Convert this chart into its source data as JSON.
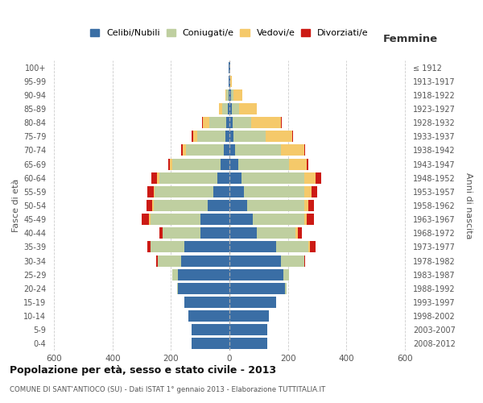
{
  "age_groups": [
    "0-4",
    "5-9",
    "10-14",
    "15-19",
    "20-24",
    "25-29",
    "30-34",
    "35-39",
    "40-44",
    "45-49",
    "50-54",
    "55-59",
    "60-64",
    "65-69",
    "70-74",
    "75-79",
    "80-84",
    "85-89",
    "90-94",
    "95-99",
    "100+"
  ],
  "birth_years": [
    "2008-2012",
    "2003-2007",
    "1998-2002",
    "1993-1997",
    "1988-1992",
    "1983-1987",
    "1978-1982",
    "1973-1977",
    "1968-1972",
    "1963-1967",
    "1958-1962",
    "1953-1957",
    "1948-1952",
    "1943-1947",
    "1938-1942",
    "1933-1937",
    "1928-1932",
    "1923-1927",
    "1918-1922",
    "1913-1917",
    "≤ 1912"
  ],
  "male": {
    "celibi": [
      130,
      130,
      140,
      155,
      175,
      175,
      165,
      155,
      100,
      100,
      75,
      55,
      40,
      30,
      20,
      15,
      10,
      5,
      3,
      2,
      2
    ],
    "coniugati": [
      0,
      0,
      0,
      0,
      5,
      20,
      80,
      115,
      130,
      170,
      185,
      200,
      200,
      165,
      130,
      95,
      60,
      20,
      8,
      2,
      2
    ],
    "vedovi": [
      0,
      0,
      0,
      0,
      0,
      0,
      0,
      0,
      0,
      5,
      5,
      5,
      8,
      10,
      10,
      15,
      20,
      10,
      3,
      0,
      0
    ],
    "divorziati": [
      0,
      0,
      0,
      0,
      0,
      0,
      5,
      10,
      10,
      25,
      20,
      20,
      20,
      5,
      5,
      5,
      3,
      0,
      0,
      0,
      0
    ]
  },
  "female": {
    "nubili": [
      130,
      130,
      135,
      160,
      190,
      185,
      175,
      160,
      95,
      80,
      60,
      50,
      40,
      30,
      20,
      15,
      10,
      8,
      5,
      2,
      2
    ],
    "coniugate": [
      0,
      0,
      0,
      0,
      5,
      20,
      80,
      110,
      130,
      175,
      195,
      205,
      215,
      175,
      155,
      110,
      65,
      25,
      10,
      2,
      0
    ],
    "vedove": [
      0,
      0,
      0,
      0,
      0,
      0,
      0,
      5,
      8,
      10,
      15,
      25,
      40,
      60,
      80,
      90,
      100,
      60,
      30,
      3,
      2
    ],
    "divorziate": [
      0,
      0,
      0,
      0,
      0,
      0,
      5,
      20,
      15,
      25,
      20,
      20,
      20,
      5,
      5,
      3,
      3,
      2,
      0,
      0,
      0
    ]
  },
  "colors": {
    "celibi_nubili": "#3A6EA5",
    "coniugati": "#BFCFA0",
    "vedovi": "#F5C96A",
    "divorziati": "#CC1A14"
  },
  "xlim": 620,
  "title": "Popolazione per età, sesso e stato civile - 2013",
  "subtitle": "COMUNE DI SANT'ANTIOCO (SU) - Dati ISTAT 1° gennaio 2013 - Elaborazione TUTTITALIA.IT",
  "ylabel_left": "Fasce di età",
  "ylabel_right": "Anni di nascita",
  "legend_labels": [
    "Celibi/Nubili",
    "Coniugati/e",
    "Vedovi/e",
    "Divorziati/e"
  ]
}
